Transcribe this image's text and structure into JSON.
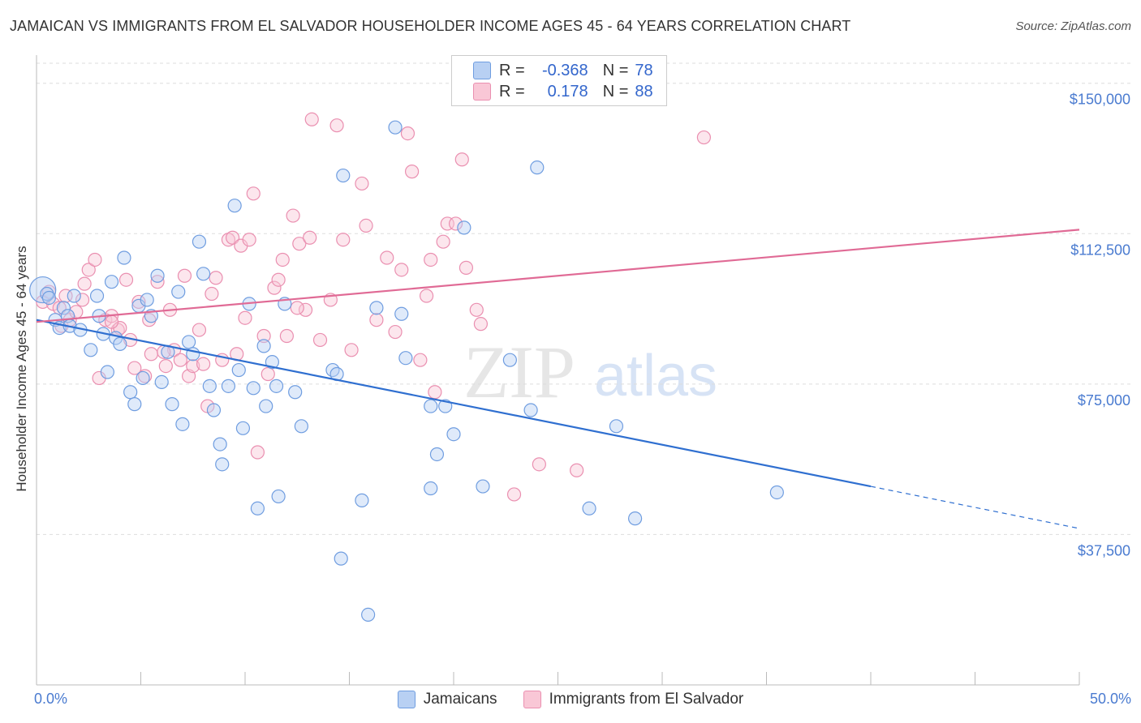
{
  "title": "JAMAICAN VS IMMIGRANTS FROM EL SALVADOR HOUSEHOLDER INCOME AGES 45 - 64 YEARS CORRELATION CHART",
  "source": "Source: ZipAtlas.com",
  "watermark": {
    "zip": "ZIP",
    "atlas": "atlas"
  },
  "legend": {
    "r_label": "R =",
    "n_label": "N =",
    "series": [
      {
        "r": "-0.368",
        "n": "78"
      },
      {
        "r": "0.178",
        "n": "88"
      }
    ]
  },
  "bottom_legend": [
    "Jamaicans",
    "Immigrants from El Salvador"
  ],
  "colors": {
    "blue_fill": "#b8d0f3",
    "blue_stroke": "#6f9de0",
    "blue_line": "#2f6fd0",
    "pink_fill": "#f9c7d6",
    "pink_stroke": "#ea8fb0",
    "pink_line": "#e06a95",
    "axis_label": "#4a7bd0",
    "grid": "#dddddd"
  },
  "chart_data": {
    "type": "scatter",
    "title": "JAMAICAN VS IMMIGRANTS FROM EL SALVADOR HOUSEHOLDER INCOME AGES 45 - 64 YEARS CORRELATION CHART",
    "xlabel": "",
    "ylabel": "Householder Income Ages 45 - 64 years",
    "xlim": [
      0,
      50
    ],
    "ylim": [
      0,
      155000
    ],
    "x_tick_labels": [
      "0.0%",
      "50.0%"
    ],
    "y_ticks": [
      37500,
      75000,
      112500,
      150000
    ],
    "y_tick_labels": [
      "$37,500",
      "$75,000",
      "$112,500",
      "$150,000"
    ],
    "grid": true,
    "series": [
      {
        "name": "Jamaicans",
        "points": [
          [
            0.3,
            98500
          ],
          [
            0.5,
            97500
          ],
          [
            0.6,
            96500
          ],
          [
            0.9,
            91000
          ],
          [
            1.1,
            89000
          ],
          [
            1.3,
            94000
          ],
          [
            1.5,
            92000
          ],
          [
            1.6,
            89500
          ],
          [
            1.8,
            97000
          ],
          [
            2.1,
            88500
          ],
          [
            2.6,
            83500
          ],
          [
            2.9,
            97000
          ],
          [
            3.0,
            92000
          ],
          [
            3.2,
            87500
          ],
          [
            3.4,
            78000
          ],
          [
            3.6,
            100500
          ],
          [
            3.8,
            86500
          ],
          [
            4.0,
            85000
          ],
          [
            4.2,
            106500
          ],
          [
            4.5,
            73000
          ],
          [
            4.7,
            70000
          ],
          [
            4.9,
            94500
          ],
          [
            5.1,
            76500
          ],
          [
            5.3,
            96000
          ],
          [
            5.5,
            92000
          ],
          [
            5.8,
            102000
          ],
          [
            6.0,
            75500
          ],
          [
            6.3,
            83000
          ],
          [
            6.5,
            70000
          ],
          [
            6.8,
            98000
          ],
          [
            7.0,
            65000
          ],
          [
            7.3,
            85500
          ],
          [
            7.5,
            82500
          ],
          [
            7.8,
            110500
          ],
          [
            8.0,
            102500
          ],
          [
            8.3,
            74500
          ],
          [
            8.5,
            68500
          ],
          [
            8.8,
            60000
          ],
          [
            8.9,
            55000
          ],
          [
            9.2,
            74500
          ],
          [
            9.5,
            119500
          ],
          [
            9.7,
            78500
          ],
          [
            9.9,
            64000
          ],
          [
            10.2,
            95000
          ],
          [
            10.4,
            74000
          ],
          [
            10.6,
            44000
          ],
          [
            10.9,
            84500
          ],
          [
            11.0,
            69500
          ],
          [
            11.3,
            80500
          ],
          [
            11.5,
            74500
          ],
          [
            11.6,
            47000
          ],
          [
            11.9,
            95000
          ],
          [
            12.4,
            73000
          ],
          [
            12.7,
            64500
          ],
          [
            14.2,
            78500
          ],
          [
            14.4,
            77500
          ],
          [
            14.6,
            31500
          ],
          [
            14.7,
            127000
          ],
          [
            15.6,
            46000
          ],
          [
            15.9,
            17500
          ],
          [
            16.3,
            94000
          ],
          [
            17.2,
            139000
          ],
          [
            17.5,
            92500
          ],
          [
            17.7,
            81500
          ],
          [
            18.9,
            69500
          ],
          [
            18.9,
            49000
          ],
          [
            19.2,
            57500
          ],
          [
            19.6,
            69500
          ],
          [
            20.0,
            62500
          ],
          [
            20.5,
            114000
          ],
          [
            21.4,
            49500
          ],
          [
            22.7,
            81000
          ],
          [
            23.7,
            68500
          ],
          [
            24.0,
            129000
          ],
          [
            26.5,
            44000
          ],
          [
            27.8,
            64500
          ],
          [
            28.7,
            41500
          ],
          [
            35.5,
            48000
          ]
        ]
      },
      {
        "name": "Immigrants from El Salvador",
        "points": [
          [
            0.3,
            95500
          ],
          [
            0.6,
            98000
          ],
          [
            0.8,
            95000
          ],
          [
            1.1,
            94000
          ],
          [
            1.2,
            89500
          ],
          [
            1.4,
            97000
          ],
          [
            1.6,
            91000
          ],
          [
            1.9,
            93000
          ],
          [
            2.2,
            96000
          ],
          [
            2.3,
            100000
          ],
          [
            2.5,
            103500
          ],
          [
            2.8,
            106000
          ],
          [
            3.0,
            76500
          ],
          [
            3.3,
            91000
          ],
          [
            3.6,
            92000
          ],
          [
            3.9,
            88500
          ],
          [
            4.0,
            89000
          ],
          [
            4.3,
            101000
          ],
          [
            4.5,
            86000
          ],
          [
            4.7,
            79000
          ],
          [
            4.9,
            95500
          ],
          [
            5.2,
            77000
          ],
          [
            5.4,
            91000
          ],
          [
            5.5,
            82500
          ],
          [
            5.8,
            100500
          ],
          [
            6.2,
            79500
          ],
          [
            6.4,
            93500
          ],
          [
            6.6,
            83500
          ],
          [
            6.9,
            81000
          ],
          [
            7.1,
            102000
          ],
          [
            7.3,
            77000
          ],
          [
            7.5,
            79500
          ],
          [
            7.8,
            88500
          ],
          [
            8.0,
            80000
          ],
          [
            8.2,
            69500
          ],
          [
            8.4,
            97500
          ],
          [
            8.6,
            101500
          ],
          [
            8.9,
            81000
          ],
          [
            9.2,
            111000
          ],
          [
            9.4,
            111500
          ],
          [
            9.6,
            82500
          ],
          [
            9.8,
            109500
          ],
          [
            10.0,
            91500
          ],
          [
            10.2,
            111000
          ],
          [
            10.4,
            122500
          ],
          [
            10.6,
            58000
          ],
          [
            10.9,
            87000
          ],
          [
            11.1,
            77500
          ],
          [
            11.4,
            99000
          ],
          [
            11.6,
            101000
          ],
          [
            11.8,
            106000
          ],
          [
            12.0,
            87000
          ],
          [
            12.3,
            117000
          ],
          [
            12.6,
            110000
          ],
          [
            12.9,
            93500
          ],
          [
            13.1,
            111500
          ],
          [
            13.2,
            141000
          ],
          [
            13.6,
            86000
          ],
          [
            14.1,
            96000
          ],
          [
            14.4,
            139500
          ],
          [
            14.7,
            111000
          ],
          [
            15.1,
            83500
          ],
          [
            15.6,
            125000
          ],
          [
            15.8,
            114500
          ],
          [
            16.3,
            91000
          ],
          [
            16.8,
            106500
          ],
          [
            17.2,
            88000
          ],
          [
            17.5,
            103500
          ],
          [
            17.8,
            137500
          ],
          [
            18.0,
            128000
          ],
          [
            18.4,
            81000
          ],
          [
            18.7,
            97000
          ],
          [
            18.9,
            106000
          ],
          [
            19.1,
            73000
          ],
          [
            19.5,
            110500
          ],
          [
            19.7,
            115000
          ],
          [
            20.1,
            115000
          ],
          [
            20.4,
            131000
          ],
          [
            20.6,
            104000
          ],
          [
            21.1,
            93500
          ],
          [
            21.3,
            90000
          ],
          [
            22.9,
            47500
          ],
          [
            24.1,
            55000
          ],
          [
            25.9,
            53500
          ],
          [
            32.0,
            136500
          ],
          [
            6.1,
            83000
          ],
          [
            3.6,
            90500
          ],
          [
            12.5,
            94000
          ]
        ]
      }
    ],
    "trend_lines": [
      {
        "series": "Jamaicans",
        "x": [
          0,
          40
        ],
        "y": [
          91000,
          49500
        ],
        "dashed_extension_to_x": 50,
        "dashed_y": 39000
      },
      {
        "series": "Immigrants from El Salvador",
        "x": [
          0,
          50
        ],
        "y": [
          90500,
          113500
        ]
      }
    ]
  }
}
